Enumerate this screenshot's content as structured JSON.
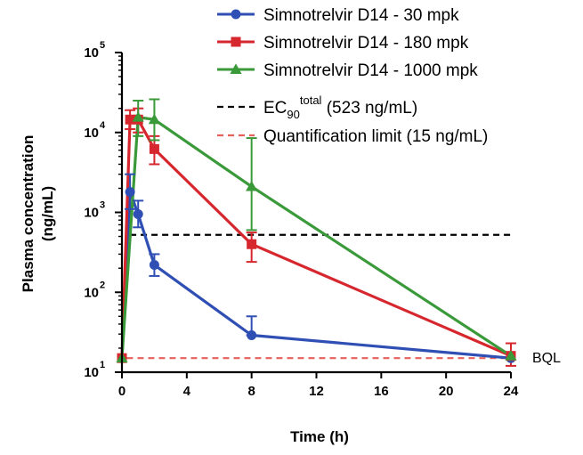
{
  "chart_data": {
    "type": "line",
    "title": "",
    "xlabel": "Time (h)",
    "ylabel_line1": "Plasma concentration",
    "ylabel_line2": "(ng/mL)",
    "y_scale": "log",
    "xlim": [
      0,
      24
    ],
    "ylim": [
      10,
      100000
    ],
    "x_ticks": [
      "0",
      "4",
      "8",
      "12",
      "16",
      "20",
      "24"
    ],
    "x_tick_values": [
      0,
      4,
      8,
      12,
      16,
      20,
      24
    ],
    "y_ticks": [
      {
        "value": 10,
        "base": "10",
        "exp": "1"
      },
      {
        "value": 100,
        "base": "10",
        "exp": "2"
      },
      {
        "value": 1000,
        "base": "10",
        "exp": "3"
      },
      {
        "value": 10000,
        "base": "10",
        "exp": "4"
      },
      {
        "value": 100000,
        "base": "10",
        "exp": "5"
      }
    ],
    "grid": false,
    "legend_position": "top-right",
    "series": [
      {
        "name": "Simnotrelvir D14 - 30 mpk",
        "color": "#2f4fb4",
        "marker": "circle",
        "points": [
          {
            "x": 0,
            "y": 15
          },
          {
            "x": 0.5,
            "y": 1800,
            "err_low": 1100,
            "err_high": 3000
          },
          {
            "x": 1,
            "y": 950,
            "err_low": 650,
            "err_high": 1400
          },
          {
            "x": 2,
            "y": 220,
            "err_low": 160,
            "err_high": 300
          },
          {
            "x": 8,
            "y": 29,
            "err_low": 29,
            "err_high": 50
          },
          {
            "x": 24,
            "y": 15
          }
        ]
      },
      {
        "name": "Simnotrelvir D14 - 180 mpk",
        "color": "#d6262e",
        "marker": "square",
        "points": [
          {
            "x": 0,
            "y": 15
          },
          {
            "x": 0.5,
            "y": 14500,
            "err_low": 11000,
            "err_high": 19000
          },
          {
            "x": 1,
            "y": 14500,
            "err_low": 10000,
            "err_high": 20000
          },
          {
            "x": 2,
            "y": 6200,
            "err_low": 4000,
            "err_high": 9000
          },
          {
            "x": 8,
            "y": 400,
            "err_low": 240,
            "err_high": 560
          },
          {
            "x": 24,
            "y": 16,
            "err_low": 12,
            "err_high": 23
          }
        ]
      },
      {
        "name": "Simnotrelvir D14 - 1000 mpk",
        "color": "#3a9a3a",
        "marker": "triangle",
        "points": [
          {
            "x": 0,
            "y": 15
          },
          {
            "x": 1,
            "y": 15500,
            "err_low": 9000,
            "err_high": 25000
          },
          {
            "x": 2,
            "y": 14500,
            "err_low": 8000,
            "err_high": 26000
          },
          {
            "x": 8,
            "y": 2100,
            "err_low": 600,
            "err_high": 8500
          },
          {
            "x": 24,
            "y": 16
          }
        ]
      }
    ],
    "reference_lines": [
      {
        "value": 523,
        "color": "#000000",
        "x_start": 0.5,
        "x_end": 24,
        "label_main": "EC",
        "label_sub": "90",
        "label_sup": "total",
        "label_rest": " (523 ng/mL)"
      },
      {
        "value": 15,
        "color": "#e8605a",
        "x_start": 0.3,
        "x_end": 24,
        "label": "Quantification limit (15 ng/mL)"
      }
    ],
    "annotation": "BQL"
  }
}
